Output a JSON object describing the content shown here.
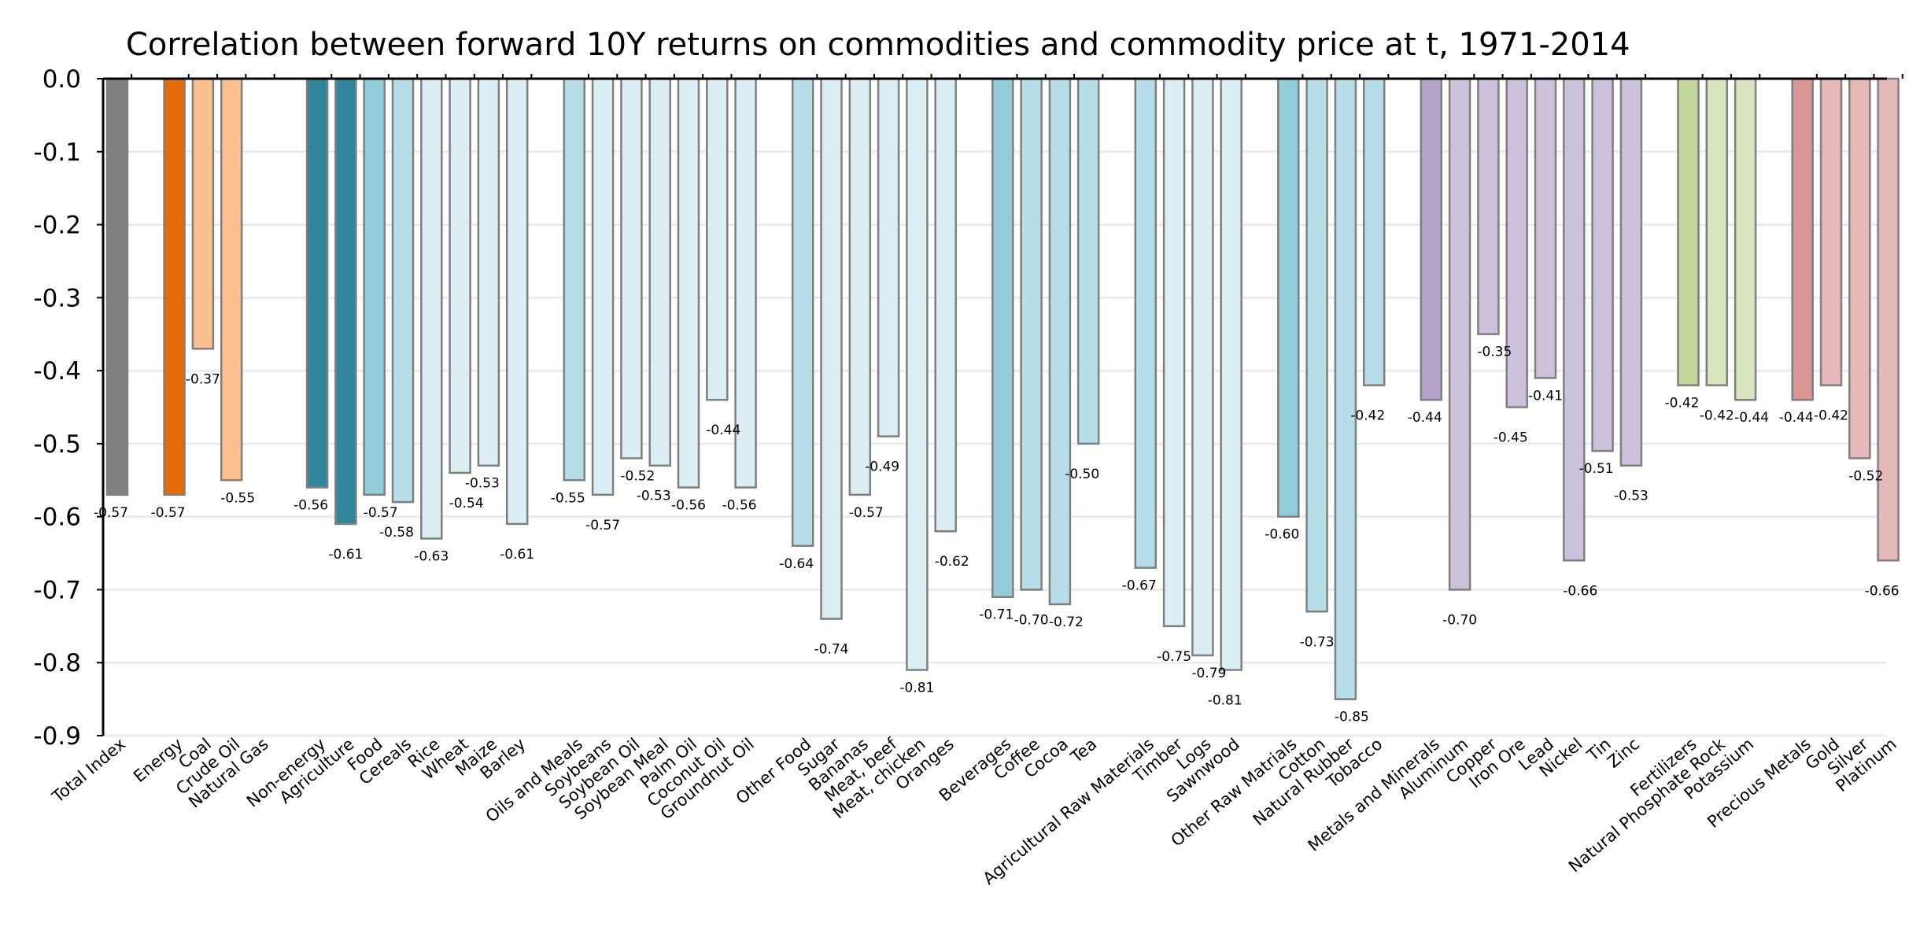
{
  "chart_data": {
    "type": "bar",
    "title": "Correlation between forward 10Y returns on commodities and commodity price at t, 1971-2014",
    "xlabel": "",
    "ylabel": "",
    "ylim": [
      -0.9,
      0.0
    ],
    "yticks": [
      "0.0",
      "-0.1",
      "-0.2",
      "-0.3",
      "-0.4",
      "-0.5",
      "-0.6",
      "-0.7",
      "-0.8",
      "-0.9"
    ],
    "grid": true,
    "groups": [
      {
        "items": [
          {
            "name": "Total Index",
            "value": -0.57,
            "label": "-0.57",
            "color": "#808080"
          }
        ]
      },
      {
        "items": [
          {
            "name": "Energy",
            "value": -0.57,
            "label": "-0.57",
            "color": "#E46C0A"
          },
          {
            "name": "Coal",
            "value": -0.37,
            "label": "-0.37",
            "color": "#FAC090"
          },
          {
            "name": "Crude Oil",
            "value": -0.55,
            "label": "-0.55",
            "color": "#FAC090"
          },
          {
            "name": "Natural Gas",
            "value": null,
            "label": null,
            "color": "#FAC090"
          }
        ]
      },
      {
        "items": [
          {
            "name": "Non-energy",
            "value": -0.56,
            "label": "-0.56",
            "color": "#31859C"
          },
          {
            "name": "Agriculture",
            "value": -0.61,
            "label": "-0.61",
            "color": "#31859C"
          },
          {
            "name": "Food",
            "value": -0.57,
            "label": "-0.57",
            "color": "#92CDDC"
          },
          {
            "name": "Cereals",
            "value": -0.58,
            "label": "-0.58",
            "color": "#B7DEE8"
          },
          {
            "name": "Rice",
            "value": -0.63,
            "label": "-0.63",
            "color": "#DAEEF3"
          },
          {
            "name": "Wheat",
            "value": -0.54,
            "label": "-0.54",
            "color": "#DAEEF3"
          },
          {
            "name": "Maize",
            "value": -0.53,
            "label": "-0.53",
            "color": "#DAEEF3"
          },
          {
            "name": "Barley",
            "value": -0.61,
            "label": "-0.61",
            "color": "#DAEEF3"
          }
        ]
      },
      {
        "items": [
          {
            "name": "Oils and Meals",
            "value": -0.55,
            "label": "-0.55",
            "color": "#B7DEE8"
          },
          {
            "name": "Soybeans",
            "value": -0.57,
            "label": "-0.57",
            "color": "#DAEEF3"
          },
          {
            "name": "Soybean Oil",
            "value": -0.52,
            "label": "-0.52",
            "color": "#DAEEF3"
          },
          {
            "name": "Soybean Meal",
            "value": -0.53,
            "label": "-0.53",
            "color": "#DAEEF3"
          },
          {
            "name": "Palm Oil",
            "value": -0.56,
            "label": "-0.56",
            "color": "#DAEEF3"
          },
          {
            "name": "Coconut Oil",
            "value": -0.44,
            "label": "-0.44",
            "color": "#DAEEF3"
          },
          {
            "name": "Groundnut Oil",
            "value": -0.56,
            "label": "-0.56",
            "color": "#DAEEF3"
          }
        ]
      },
      {
        "items": [
          {
            "name": "Other Food",
            "value": -0.64,
            "label": "-0.64",
            "color": "#B7DEE8"
          },
          {
            "name": "Sugar",
            "value": -0.74,
            "label": "-0.74",
            "color": "#DAEEF3"
          },
          {
            "name": "Bananas",
            "value": -0.57,
            "label": "-0.57",
            "color": "#DAEEF3"
          },
          {
            "name": "Meat, beef",
            "value": -0.49,
            "label": "-0.49",
            "color": "#DAEEF3"
          },
          {
            "name": "Meat, chicken",
            "value": -0.81,
            "label": "-0.81",
            "color": "#DAEEF3"
          },
          {
            "name": "Oranges",
            "value": -0.62,
            "label": "-0.62",
            "color": "#DAEEF3"
          }
        ]
      },
      {
        "items": [
          {
            "name": "Beverages",
            "value": -0.71,
            "label": "-0.71",
            "color": "#92CDDC"
          },
          {
            "name": "Coffee",
            "value": -0.7,
            "label": "-0.70",
            "color": "#B7DEE8"
          },
          {
            "name": "Cocoa",
            "value": -0.72,
            "label": "-0.72",
            "color": "#B7DEE8"
          },
          {
            "name": "Tea",
            "value": -0.5,
            "label": "-0.50",
            "color": "#B7DEE8"
          }
        ]
      },
      {
        "items": [
          {
            "name": "Agricultural Raw Materials",
            "value": -0.67,
            "label": "-0.67",
            "color": "#B7DEE8"
          },
          {
            "name": "Timber",
            "value": -0.75,
            "label": "-0.75",
            "color": "#DAEEF3"
          },
          {
            "name": "Logs",
            "value": -0.79,
            "label": "-0.79",
            "color": "#DAEEF3"
          },
          {
            "name": "Sawnwood",
            "value": -0.81,
            "label": "-0.81",
            "color": "#DAEEF3"
          }
        ]
      },
      {
        "items": [
          {
            "name": "Other Raw Matrials",
            "value": -0.6,
            "label": "-0.60",
            "color": "#92CDDC"
          },
          {
            "name": "Cotton",
            "value": -0.73,
            "label": "-0.73",
            "color": "#B7DEE8"
          },
          {
            "name": "Natural Rubber",
            "value": -0.85,
            "label": "-0.85",
            "color": "#B7DEE8"
          },
          {
            "name": "Tobacco",
            "value": -0.42,
            "label": "-0.42",
            "color": "#B7DEE8"
          }
        ]
      },
      {
        "items": [
          {
            "name": "Metals and Minerals",
            "value": -0.44,
            "label": "-0.44",
            "color": "#B3A2C7"
          },
          {
            "name": "Aluminum",
            "value": -0.7,
            "label": "-0.70",
            "color": "#CCC1DA"
          },
          {
            "name": "Copper",
            "value": -0.35,
            "label": "-0.35",
            "color": "#CCC1DA"
          },
          {
            "name": "Iron Ore",
            "value": -0.45,
            "label": "-0.45",
            "color": "#CCC1DA"
          },
          {
            "name": "Lead",
            "value": -0.41,
            "label": "-0.41",
            "color": "#CCC1DA"
          },
          {
            "name": "Nickel",
            "value": -0.66,
            "label": "-0.66",
            "color": "#CCC1DA"
          },
          {
            "name": "Tin",
            "value": -0.51,
            "label": "-0.51",
            "color": "#CCC1DA"
          },
          {
            "name": "Zinc",
            "value": -0.53,
            "label": "-0.53",
            "color": "#CCC1DA"
          }
        ]
      },
      {
        "items": [
          {
            "name": "Fertilizers",
            "value": -0.42,
            "label": "-0.42",
            "color": "#C3D69B"
          },
          {
            "name": "Natural Phosphate Rock",
            "value": -0.42,
            "label": "-0.42",
            "color": "#D7E4BD"
          },
          {
            "name": "Potassium",
            "value": -0.44,
            "label": "-0.44",
            "color": "#D7E4BD"
          }
        ]
      },
      {
        "items": [
          {
            "name": "Precious Metals",
            "value": -0.44,
            "label": "-0.44",
            "color": "#D99694"
          },
          {
            "name": "Gold",
            "value": -0.42,
            "label": "-0.42",
            "color": "#E6B9B8"
          },
          {
            "name": "Silver",
            "value": -0.52,
            "label": "-0.52",
            "color": "#E6B9B8"
          },
          {
            "name": "Platinum",
            "value": -0.66,
            "label": "-0.66",
            "color": "#E6B9B8"
          }
        ]
      }
    ]
  }
}
